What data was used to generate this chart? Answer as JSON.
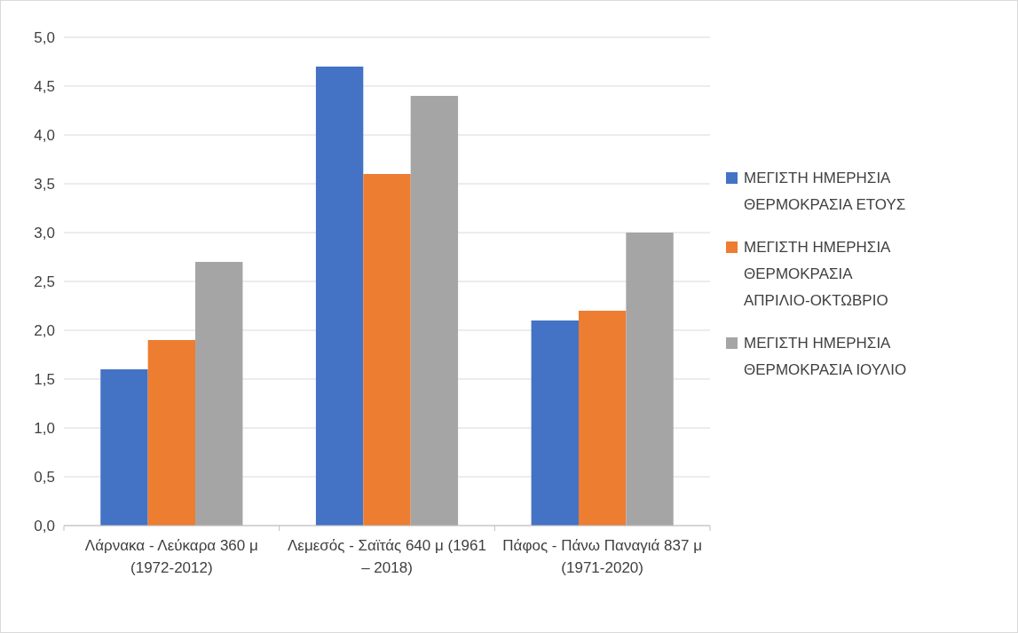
{
  "chart_data": {
    "type": "bar",
    "categories": [
      "Λάρνακα - Λεύκαρα 360 μ (1972-2012)",
      "Λεμεσός - Σαϊτάς 640 μ (1961 – 2018)",
      "Πάφος - Πάνω Παναγιά 837 μ (1971-2020)"
    ],
    "series": [
      {
        "name": "ΜΕΓΙΣΤΗ ΗΜΕΡΗΣΙΑ ΘΕΡΜΟΚΡΑΣΙΑ ΕΤΟΥΣ",
        "color": "#4472c4",
        "values": [
          1.6,
          4.7,
          2.1
        ]
      },
      {
        "name": "ΜΕΓΙΣΤΗ ΗΜΕΡΗΣΙΑ ΘΕΡΜΟΚΡΑΣΙΑ ΑΠΡΙΛΙΟ-ΟΚΤΩΒΡΙΟ",
        "color": "#ed7d31",
        "values": [
          1.9,
          3.6,
          2.2
        ]
      },
      {
        "name": "ΜΕΓΙΣΤΗ ΗΜΕΡΗΣΙΑ ΘΕΡΜΟΚΡΑΣΙΑ ΙΟΥΛΙΟ",
        "color": "#a5a5a5",
        "values": [
          2.7,
          4.4,
          3.0
        ]
      }
    ],
    "ylim": [
      0,
      5
    ],
    "yticks": [
      {
        "value": 0,
        "label": "0,0"
      },
      {
        "value": 0.5,
        "label": "0,5"
      },
      {
        "value": 1,
        "label": "1,0"
      },
      {
        "value": 1.5,
        "label": "1,5"
      },
      {
        "value": 2,
        "label": "2,0"
      },
      {
        "value": 2.5,
        "label": "2,5"
      },
      {
        "value": 3,
        "label": "3,0"
      },
      {
        "value": 3.5,
        "label": "3,5"
      },
      {
        "value": 4,
        "label": "4,0"
      },
      {
        "value": 4.5,
        "label": "4,5"
      },
      {
        "value": 5,
        "label": "5,0"
      }
    ],
    "grid": "y",
    "legend": "right"
  }
}
